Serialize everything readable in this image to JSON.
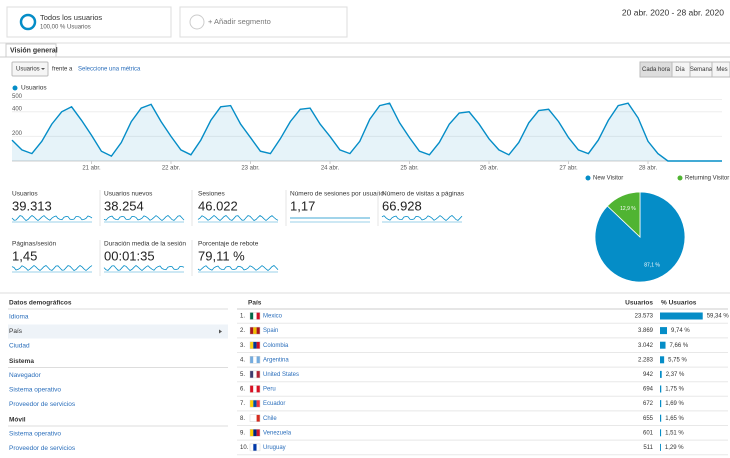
{
  "header": {
    "segment_name": "Todos los usuarios",
    "segment_share": "100,00 % Usuarios",
    "add_segment": "+ Añadir segmento",
    "date_range": "20 abr. 2020 - 28 abr. 2020"
  },
  "tab": "Visión general",
  "controls": {
    "metric": "Usuarios",
    "versus": "frente a",
    "select_metric": "Seleccione una métrica",
    "granularity": [
      "Cada hora",
      "Día",
      "Semana",
      "Mes"
    ]
  },
  "chart_data": [
    {
      "type": "line",
      "categories": [
        null,
        null,
        null,
        null,
        null,
        null,
        null,
        null,
        "21 abr.",
        null,
        null,
        null,
        null,
        null,
        null,
        null,
        "22 abr.",
        null,
        null,
        null,
        null,
        null,
        null,
        null,
        "23 abr.",
        null,
        null,
        null,
        null,
        null,
        null,
        null,
        "24 abr.",
        null,
        null,
        null,
        null,
        null,
        null,
        null,
        "25 abr.",
        null,
        null,
        null,
        null,
        null,
        null,
        null,
        "26 abr.",
        null,
        null,
        null,
        null,
        null,
        null,
        null,
        "27 abr.",
        null,
        null,
        null,
        null,
        null,
        null,
        null,
        "28 abr.",
        null,
        null,
        null,
        null,
        null,
        null,
        null
      ],
      "series": [
        {
          "name": "Usuarios",
          "color": "#058dc7",
          "values": [
            170,
            90,
            60,
            160,
            300,
            400,
            440,
            330,
            210,
            80,
            40,
            150,
            320,
            430,
            460,
            320,
            200,
            90,
            50,
            170,
            330,
            440,
            450,
            300,
            190,
            80,
            60,
            180,
            320,
            420,
            430,
            300,
            200,
            90,
            60,
            160,
            340,
            450,
            470,
            310,
            190,
            80,
            50,
            150,
            300,
            390,
            400,
            300,
            180,
            90,
            50,
            150,
            310,
            410,
            420,
            320,
            190,
            90,
            60,
            170,
            330,
            450,
            470,
            350,
            160,
            60,
            0,
            0,
            0,
            0,
            0,
            0
          ]
        }
      ],
      "ylim": [
        0,
        520
      ],
      "yticks": [
        200,
        400,
        500
      ],
      "grid": true
    },
    {
      "type": "pie",
      "categories": [
        "New Visitor",
        "Returning Visitor"
      ],
      "values": [
        87.1,
        12.9
      ],
      "value_labels": [
        "87,1 %",
        "12,9 %"
      ],
      "colors": [
        "#058dc7",
        "#50b432"
      ],
      "legend": "top"
    }
  ],
  "scorecards": [
    {
      "label": "Usuarios",
      "value": "39.313"
    },
    {
      "label": "Usuarios nuevos",
      "value": "38.254"
    },
    {
      "label": "Sesiones",
      "value": "46.022"
    },
    {
      "label": "Número de sesiones por usuario",
      "value": "1,17"
    },
    {
      "label": "Número de visitas a páginas",
      "value": "66.928"
    },
    {
      "label": "Páginas/sesión",
      "value": "1,45"
    },
    {
      "label": "Duración media de la sesión",
      "value": "00:01:35"
    },
    {
      "label": "Porcentaje de rebote",
      "value": "79,11 %"
    }
  ],
  "nav": [
    {
      "heading": "Datos demográficos",
      "items": [
        "Idioma",
        "País",
        "Ciudad"
      ]
    },
    {
      "heading": "Sistema",
      "items": [
        "Navegador",
        "Sistema operativo",
        "Proveedor de servicios"
      ]
    },
    {
      "heading": "Móvil",
      "items": [
        "Sistema operativo",
        "Proveedor de servicios"
      ]
    }
  ],
  "table": {
    "headers": [
      "País",
      "Usuarios",
      "% Usuarios"
    ],
    "rows": [
      {
        "rank": "1.",
        "country": "Mexico",
        "users": "23.573",
        "pct": 59.34,
        "pct_label": "59,34 %"
      },
      {
        "rank": "2.",
        "country": "Spain",
        "users": "3.869",
        "pct": 9.74,
        "pct_label": "9,74 %"
      },
      {
        "rank": "3.",
        "country": "Colombia",
        "users": "3.042",
        "pct": 7.66,
        "pct_label": "7,66 %"
      },
      {
        "rank": "4.",
        "country": "Argentina",
        "users": "2.283",
        "pct": 5.75,
        "pct_label": "5,75 %"
      },
      {
        "rank": "5.",
        "country": "United States",
        "users": "942",
        "pct": 2.37,
        "pct_label": "2,37 %"
      },
      {
        "rank": "6.",
        "country": "Peru",
        "users": "694",
        "pct": 1.75,
        "pct_label": "1,75 %"
      },
      {
        "rank": "7.",
        "country": "Ecuador",
        "users": "672",
        "pct": 1.69,
        "pct_label": "1,69 %"
      },
      {
        "rank": "8.",
        "country": "Chile",
        "users": "655",
        "pct": 1.65,
        "pct_label": "1,65 %"
      },
      {
        "rank": "9.",
        "country": "Venezuela",
        "users": "601",
        "pct": 1.51,
        "pct_label": "1,51 %"
      },
      {
        "rank": "10.",
        "country": "Uruguay",
        "users": "511",
        "pct": 1.29,
        "pct_label": "1,29 %"
      }
    ]
  }
}
